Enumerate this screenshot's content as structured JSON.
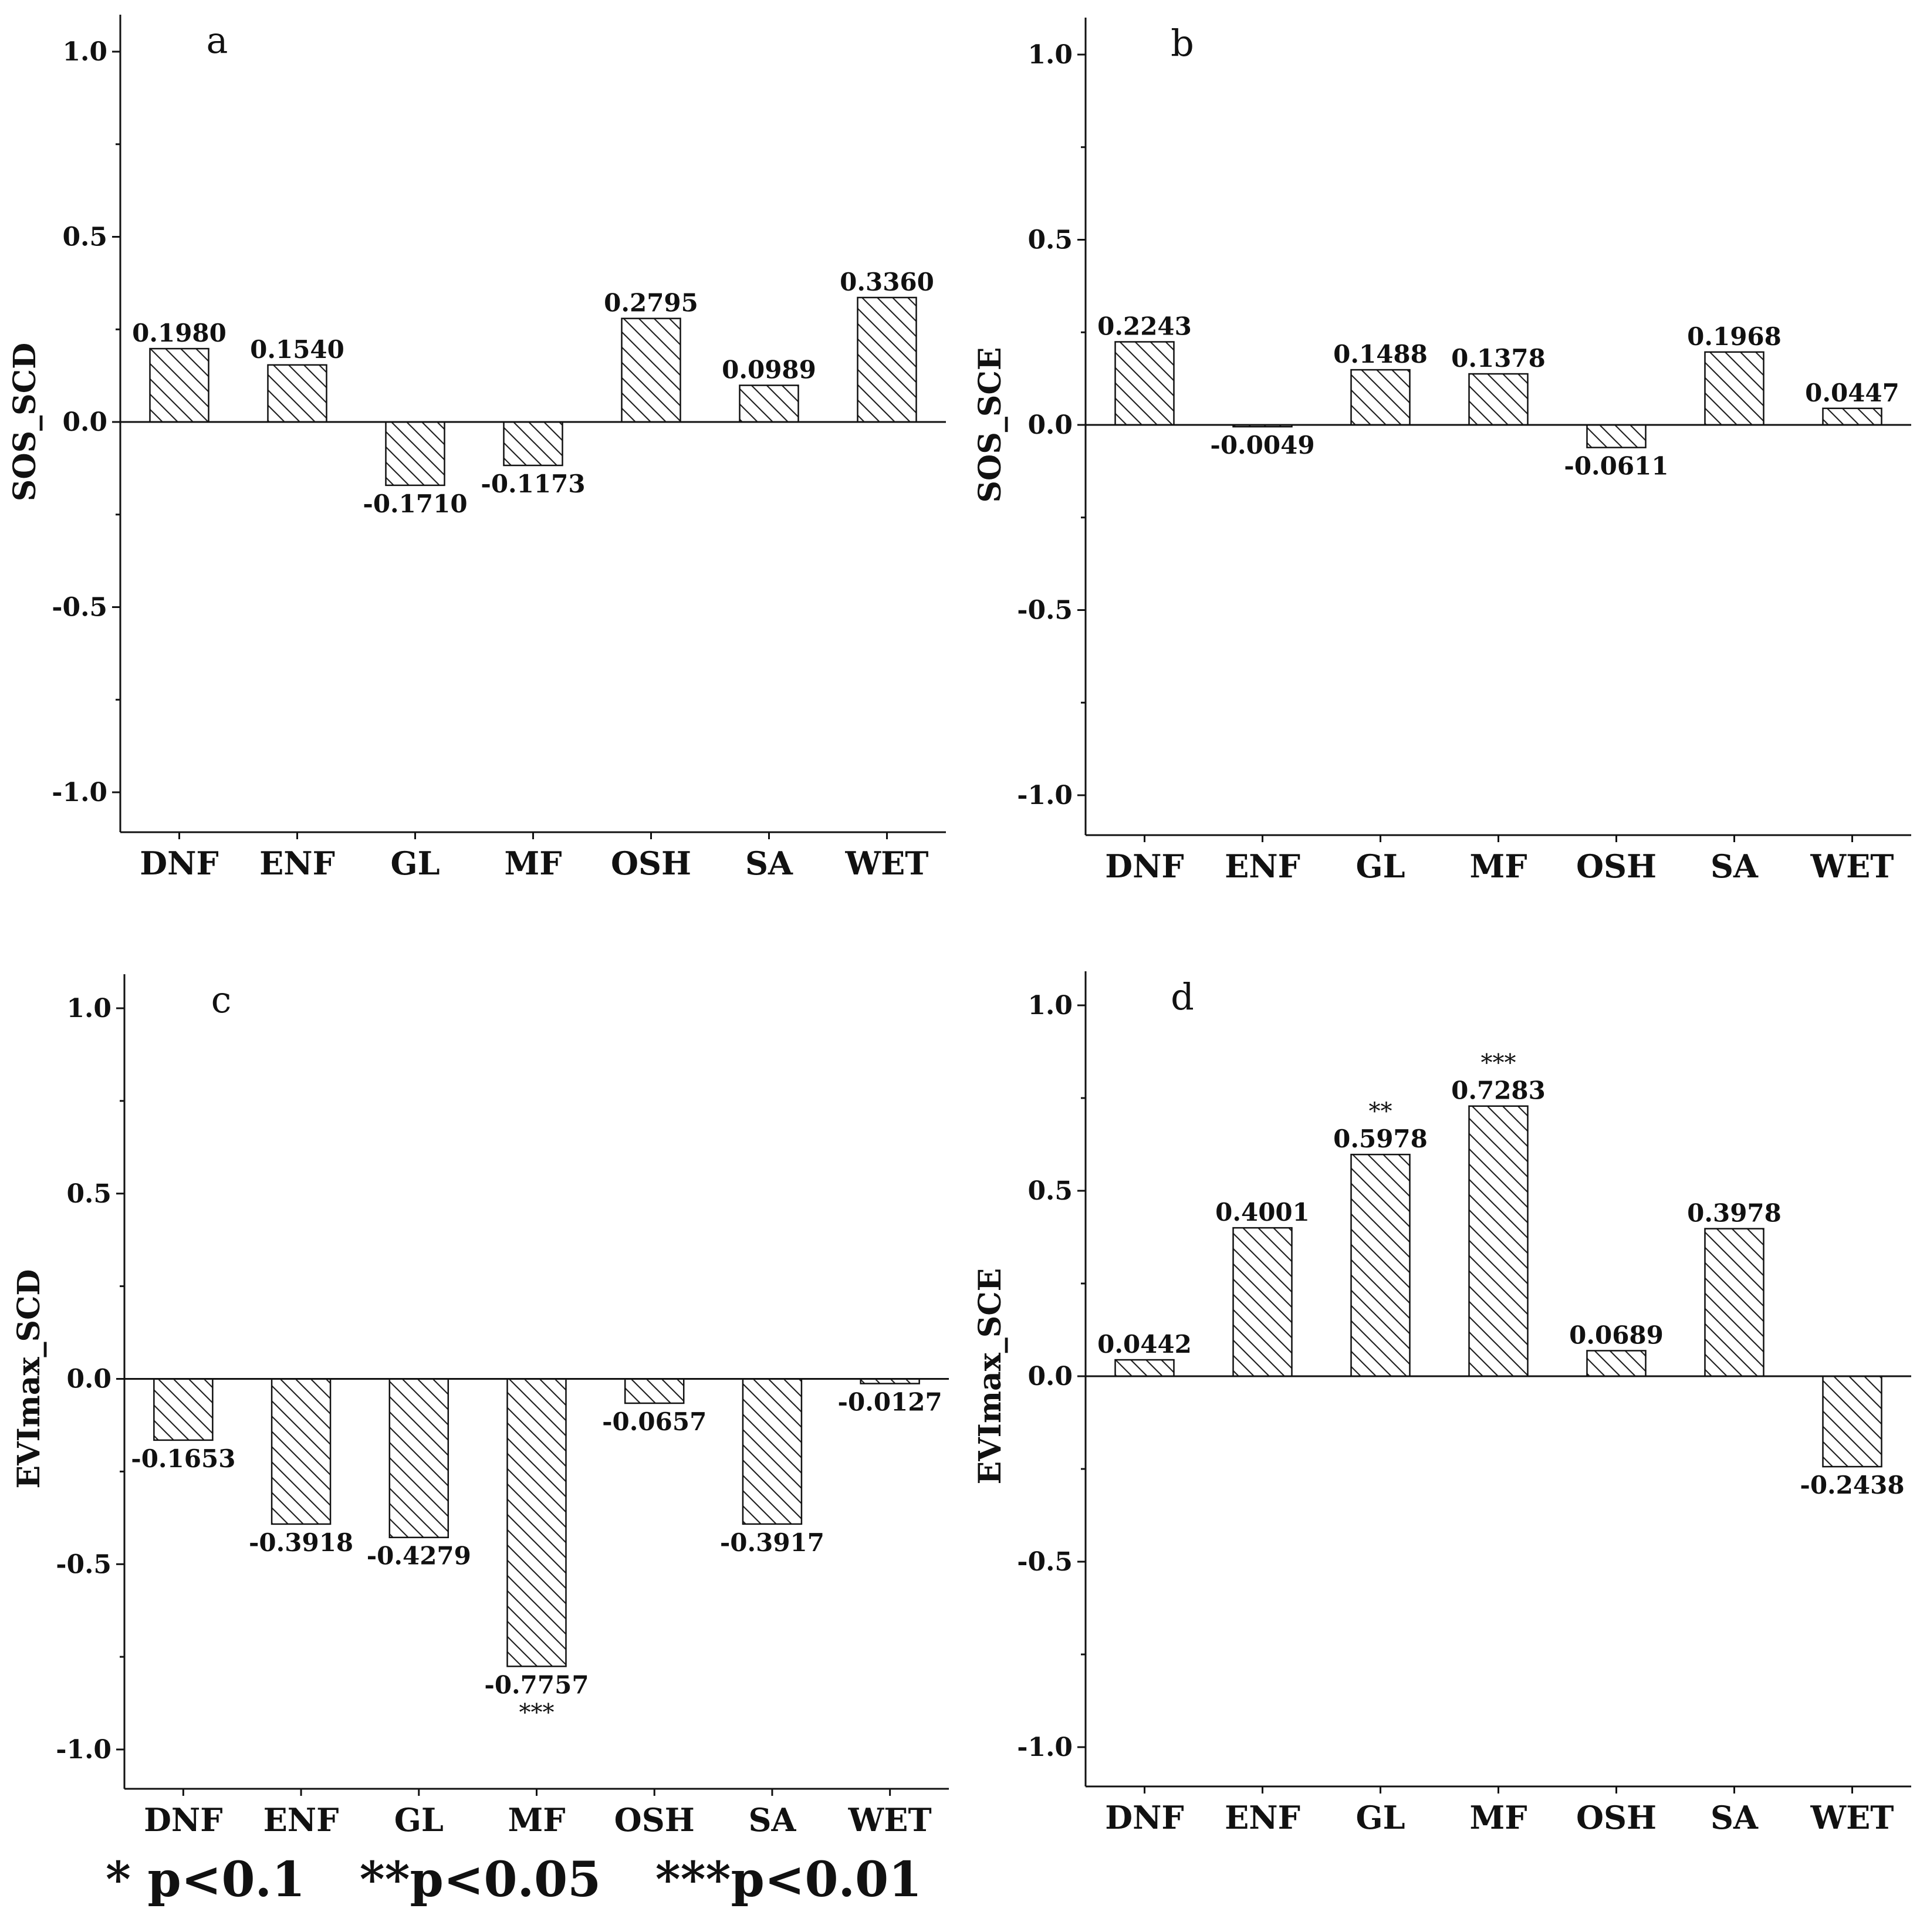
{
  "chart_data": [
    {
      "type": "bar",
      "panel_label": "a",
      "ylabel": "SOS_SCD",
      "ylim": [
        -1.1,
        1.1
      ],
      "yticks": [
        "1.0",
        "0.5",
        "0.0",
        "-0.5",
        "-1.0"
      ],
      "categories": [
        "DNF",
        "ENF",
        "GL",
        "MF",
        "OSH",
        "SA",
        "WET"
      ],
      "values": [
        0.198,
        0.154,
        -0.171,
        -0.1173,
        0.2795,
        0.0989,
        0.336
      ],
      "value_labels": [
        "0.1980",
        "0.1540",
        "-0.1710",
        "-0.1173",
        "0.2795",
        "0.0989",
        "0.3360"
      ],
      "significance": [
        "",
        "",
        "",
        "",
        "",
        "",
        ""
      ]
    },
    {
      "type": "bar",
      "panel_label": "b",
      "ylabel": "SOS_SCE",
      "ylim": [
        -1.1,
        1.1
      ],
      "yticks": [
        "1.0",
        "0.5",
        "0.0",
        "-0.5",
        "-1.0"
      ],
      "categories": [
        "DNF",
        "ENF",
        "GL",
        "MF",
        "OSH",
        "SA",
        "WET"
      ],
      "values": [
        0.2243,
        -0.0049,
        0.1488,
        0.1378,
        -0.0611,
        0.1968,
        0.0447
      ],
      "value_labels": [
        "0.2243",
        "-0.0049",
        "0.1488",
        "0.1378",
        "-0.0611",
        "0.1968",
        "0.0447"
      ],
      "significance": [
        "",
        "",
        "",
        "",
        "",
        "",
        ""
      ]
    },
    {
      "type": "bar",
      "panel_label": "c",
      "ylabel": "EVImax_SCD",
      "ylim": [
        -1.1,
        1.1
      ],
      "yticks": [
        "1.0",
        "0.5",
        "0.0",
        "-0.5",
        "-1.0"
      ],
      "categories": [
        "DNF",
        "ENF",
        "GL",
        "MF",
        "OSH",
        "SA",
        "WET"
      ],
      "values": [
        -0.1653,
        -0.3918,
        -0.4279,
        -0.7757,
        -0.0657,
        -0.3917,
        -0.0127
      ],
      "value_labels": [
        "-0.1653",
        "-0.3918",
        "-0.4279",
        "-0.7757",
        "-0.0657",
        "-0.3917",
        "-0.0127"
      ],
      "significance": [
        "",
        "",
        "",
        "***",
        "",
        "",
        ""
      ]
    },
    {
      "type": "bar",
      "panel_label": "d",
      "ylabel": "EVImax_SCE",
      "ylim": [
        -1.1,
        1.1
      ],
      "yticks": [
        "1.0",
        "0.5",
        "0.0",
        "-0.5",
        "-1.0"
      ],
      "categories": [
        "DNF",
        "ENF",
        "GL",
        "MF",
        "OSH",
        "SA",
        "WET"
      ],
      "values": [
        0.0442,
        0.4001,
        0.5978,
        0.7283,
        0.0689,
        0.3978,
        -0.2438
      ],
      "value_labels": [
        "0.0442",
        "0.4001",
        "0.5978",
        "0.7283",
        "0.0689",
        "0.3978",
        "-0.2438"
      ],
      "significance": [
        "",
        "",
        "**",
        "***",
        "",
        "",
        ""
      ]
    }
  ],
  "legend": {
    "p1": "* p<0.1",
    "p2": "**p<0.05",
    "p3": "***p<0.01"
  }
}
